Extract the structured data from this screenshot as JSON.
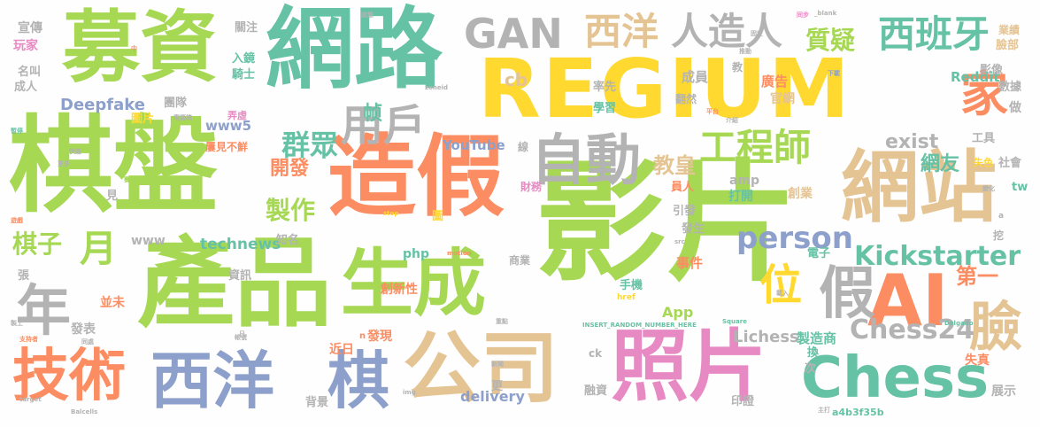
{
  "palette": {
    "green": "#a6d854",
    "teal": "#66c2a5",
    "orange": "#fc8d62",
    "blue": "#8da0cb",
    "pink": "#e78ac3",
    "yellow": "#ffd92f",
    "tan": "#e5c494",
    "gray": "#b3b3b3"
  },
  "words": [
    {
      "text": "棋盤",
      "color": "green"
    },
    {
      "text": "影片",
      "color": "green"
    },
    {
      "text": "產品",
      "color": "green"
    },
    {
      "text": "REGIUM",
      "color": "yellow"
    },
    {
      "text": "網路",
      "color": "teal"
    },
    {
      "text": "募資",
      "color": "green"
    },
    {
      "text": "造假",
      "color": "orange"
    },
    {
      "text": "公司",
      "color": "tan"
    },
    {
      "text": "網站",
      "color": "tan"
    },
    {
      "text": "照片",
      "color": "pink"
    },
    {
      "text": "生成",
      "color": "green"
    },
    {
      "text": "AI",
      "color": "orange"
    },
    {
      "text": "西洋",
      "color": "blue"
    },
    {
      "text": "技術",
      "color": "orange"
    },
    {
      "text": "Chess",
      "color": "teal"
    },
    {
      "text": "自動",
      "color": "gray"
    },
    {
      "text": "棋",
      "color": "blue"
    },
    {
      "text": "年",
      "color": "gray"
    },
    {
      "text": "家",
      "color": "orange"
    },
    {
      "text": "假",
      "color": "gray"
    },
    {
      "text": "位",
      "color": "yellow"
    },
    {
      "text": "臉",
      "color": "tan"
    },
    {
      "text": "GAN",
      "color": "gray"
    },
    {
      "text": "西洋",
      "color": "tan"
    },
    {
      "text": "人造人",
      "color": "gray"
    },
    {
      "text": "西班牙",
      "color": "teal"
    },
    {
      "text": "用戶",
      "color": "gray"
    },
    {
      "text": "工程師",
      "color": "green"
    },
    {
      "text": "月",
      "color": "green"
    },
    {
      "text": "Kickstarter",
      "color": "teal"
    },
    {
      "text": "Chess24",
      "color": "gray"
    },
    {
      "text": "person",
      "color": "blue"
    },
    {
      "text": "群眾",
      "color": "teal"
    },
    {
      "text": "質疑",
      "color": "green"
    },
    {
      "text": "教皇",
      "color": "tan"
    },
    {
      "text": "製作",
      "color": "green"
    },
    {
      "text": "棋子",
      "color": "green"
    },
    {
      "text": "exist",
      "color": "gray"
    },
    {
      "text": "第一",
      "color": "orange"
    },
    {
      "text": "網友",
      "color": "teal"
    },
    {
      "text": "開發",
      "color": "orange"
    },
    {
      "text": "帧",
      "color": "teal"
    },
    {
      "text": "Deepfake",
      "color": "blue"
    },
    {
      "text": "technews",
      "color": "teal"
    },
    {
      "text": "Lichess",
      "color": "gray"
    },
    {
      "text": "YouTube",
      "color": "blue"
    },
    {
      "text": "delivery",
      "color": "blue"
    },
    {
      "text": "Reddit",
      "color": "teal"
    },
    {
      "text": "www",
      "color": "gray"
    },
    {
      "text": "www5",
      "color": "blue"
    },
    {
      "text": "cb",
      "color": "tan"
    },
    {
      "text": "App",
      "color": "green"
    },
    {
      "text": "php",
      "color": "teal"
    },
    {
      "text": "amp",
      "color": "gray"
    },
    {
      "text": "創新性",
      "color": "orange"
    },
    {
      "text": "發現",
      "color": "orange"
    },
    {
      "text": "近日",
      "color": "orange"
    },
    {
      "text": "事件",
      "color": "orange"
    },
    {
      "text": "打開",
      "color": "teal"
    },
    {
      "text": "創業",
      "color": "tan"
    },
    {
      "text": "製造商",
      "color": "teal"
    },
    {
      "text": "失真",
      "color": "orange"
    },
    {
      "text": "展示",
      "color": "gray"
    },
    {
      "text": "融資",
      "color": "gray"
    },
    {
      "text": "印證",
      "color": "gray"
    },
    {
      "text": "背景",
      "color": "gray"
    },
    {
      "text": "發表",
      "color": "gray"
    },
    {
      "text": "並未",
      "color": "orange"
    },
    {
      "text": "資訊",
      "color": "gray"
    },
    {
      "text": "成員",
      "color": "gray"
    },
    {
      "text": "廣告",
      "color": "orange"
    },
    {
      "text": "官網",
      "color": "tan"
    },
    {
      "text": "影像",
      "color": "gray"
    },
    {
      "text": "數據",
      "color": "gray"
    },
    {
      "text": "臉部",
      "color": "tan"
    },
    {
      "text": "業績",
      "color": "tan"
    },
    {
      "text": "宣傳",
      "color": "gray"
    },
    {
      "text": "玩家",
      "color": "pink"
    },
    {
      "text": "名叫",
      "color": "gray"
    },
    {
      "text": "成人",
      "color": "gray"
    },
    {
      "text": "關注",
      "color": "gray"
    },
    {
      "text": "入鏡",
      "color": "teal"
    },
    {
      "text": "騎士",
      "color": "teal"
    },
    {
      "text": "團隊",
      "color": "gray"
    },
    {
      "text": "圖片",
      "color": "yellow"
    },
    {
      "text": "率先",
      "color": "gray"
    },
    {
      "text": "學習",
      "color": "teal"
    },
    {
      "text": "知名",
      "color": "gray"
    },
    {
      "text": "手機",
      "color": "teal"
    },
    {
      "text": "商業",
      "color": "gray"
    },
    {
      "text": "電子",
      "color": "teal"
    },
    {
      "text": "員人",
      "color": "orange"
    },
    {
      "text": "做",
      "color": "gray"
    },
    {
      "text": "工具",
      "color": "gray"
    },
    {
      "text": "社會",
      "color": "gray"
    },
    {
      "text": "失色",
      "color": "yellow"
    },
    {
      "text": "更",
      "color": "gray"
    },
    {
      "text": "次",
      "color": "gray"
    },
    {
      "text": "換",
      "color": "teal"
    },
    {
      "text": "引發",
      "color": "gray"
    },
    {
      "text": "發生",
      "color": "gray"
    },
    {
      "text": "財務",
      "color": "pink"
    },
    {
      "text": "翻然",
      "color": "gray"
    },
    {
      "text": "教",
      "color": "gray"
    },
    {
      "text": "張",
      "color": "gray"
    },
    {
      "text": "見",
      "color": "gray"
    },
    {
      "text": "線",
      "color": "gray"
    },
    {
      "text": "圖",
      "color": "yellow"
    },
    {
      "text": "挖",
      "color": "gray"
    },
    {
      "text": "tw",
      "color": "teal"
    },
    {
      "text": "a4b3f35b",
      "color": "teal"
    },
    {
      "text": "ck",
      "color": "gray"
    },
    {
      "text": "n",
      "color": "orange"
    },
    {
      "text": "屢見不鮮",
      "color": "orange"
    },
    {
      "text": "弄虛",
      "color": "pink"
    },
    {
      "text": "INSERT_RANDOM_NUMBER_HERE",
      "color": "teal"
    },
    {
      "text": "zoneid",
      "color": "gray"
    },
    {
      "text": "motion",
      "color": "orange"
    },
    {
      "text": "stop",
      "color": "yellow"
    },
    {
      "text": "href",
      "color": "yellow"
    },
    {
      "text": "_blank",
      "color": "gray"
    },
    {
      "text": "Square",
      "color": "teal"
    },
    {
      "text": "Delgado",
      "color": "teal"
    },
    {
      "text": "Balcells",
      "color": "gray"
    },
    {
      "text": "target",
      "color": "gray"
    },
    {
      "text": "img",
      "color": "gray"
    },
    {
      "text": "src",
      "color": "gray"
    },
    {
      "text": "a",
      "color": "gray"
    },
    {
      "text": "平台",
      "color": "orange"
    },
    {
      "text": "下載",
      "color": "blue"
    },
    {
      "text": "固定",
      "color": "gray"
    },
    {
      "text": "推動",
      "color": "gray"
    },
    {
      "text": "就態",
      "color": "gray"
    },
    {
      "text": "同步",
      "color": "pink"
    },
    {
      "text": "中",
      "color": "orange"
    },
    {
      "text": "賽局",
      "color": "green"
    },
    {
      "text": "更多",
      "color": "gray"
    },
    {
      "text": "快速",
      "color": "gray"
    },
    {
      "text": "暫停",
      "color": "teal"
    },
    {
      "text": "電腦稿",
      "color": "gray"
    },
    {
      "text": "介紹",
      "color": "gray"
    },
    {
      "text": "變化",
      "color": "gray"
    },
    {
      "text": "新聞",
      "color": "gray"
    },
    {
      "text": "載入",
      "color": "gray"
    },
    {
      "text": "支持者",
      "color": "orange"
    },
    {
      "text": "同處",
      "color": "gray"
    },
    {
      "text": "製上",
      "color": "gray"
    },
    {
      "text": "帳號",
      "color": "gray"
    },
    {
      "text": "遊戲",
      "color": "orange"
    },
    {
      "text": "重點",
      "color": "gray"
    },
    {
      "text": "日",
      "color": "gray"
    },
    {
      "text": "主打",
      "color": "gray"
    }
  ]
}
